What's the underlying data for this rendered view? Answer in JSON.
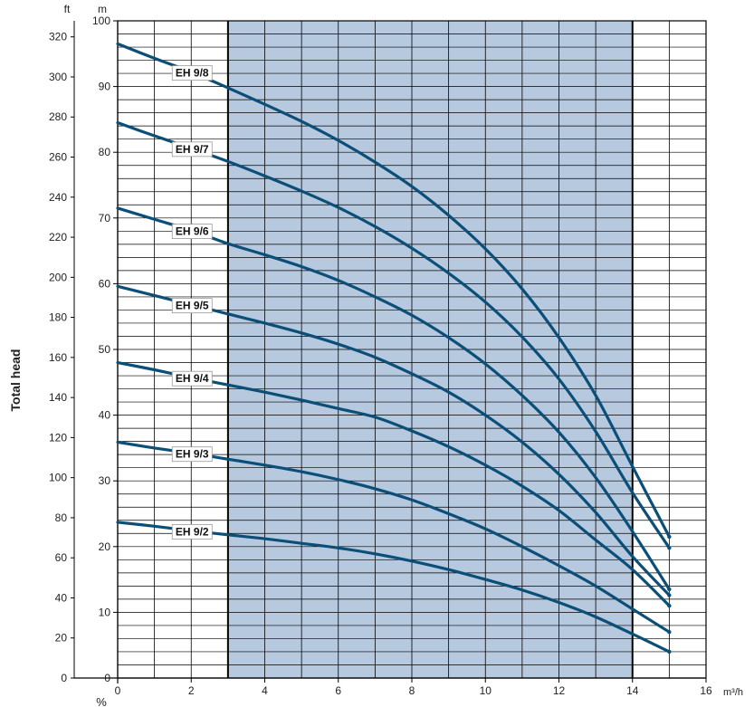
{
  "chart_data": {
    "type": "line",
    "ylabel": "Total head",
    "y_unit_m": "m",
    "y_unit_ft": "ft",
    "x_unit": "m³/h",
    "bottom_label": "%",
    "xlim": [
      0,
      16
    ],
    "ylim_m": [
      0,
      100
    ],
    "ylim_ft": [
      0,
      328
    ],
    "x_ticks": [
      "0",
      "2",
      "4",
      "6",
      "8",
      "10",
      "12",
      "14",
      "16"
    ],
    "y_ticks_m": [
      "0",
      "10",
      "20",
      "30",
      "40",
      "50",
      "60",
      "70",
      "80",
      "90",
      "100"
    ],
    "y_ticks_ft": [
      "0",
      "20",
      "40",
      "60",
      "80",
      "100",
      "120",
      "140",
      "160",
      "180",
      "200",
      "220",
      "240",
      "260",
      "280",
      "300",
      "320"
    ],
    "grid": true,
    "shaded_region_x": [
      3,
      14
    ],
    "colors": {
      "curve": "#0b4f78",
      "shade": "#b7c9df",
      "grid": "#000000",
      "text": "#222222"
    },
    "series": [
      {
        "name": "EH 9/8",
        "label_x": 2.0,
        "x": [
          0,
          1,
          2,
          3,
          4,
          5,
          6,
          7,
          8,
          9,
          10,
          11,
          12,
          13,
          14,
          15
        ],
        "y": [
          96.5,
          94.3,
          92.2,
          89.8,
          87.3,
          84.7,
          81.8,
          78.5,
          74.8,
          70.4,
          65.3,
          59.2,
          51.8,
          43.0,
          32.2,
          21.5
        ]
      },
      {
        "name": "EH 9/7",
        "label_x": 2.0,
        "x": [
          0,
          1,
          2,
          3,
          4,
          5,
          6,
          7,
          8,
          9,
          10,
          11,
          12,
          13,
          14,
          15
        ],
        "y": [
          84.5,
          82.5,
          80.6,
          78.6,
          76.4,
          74.1,
          71.6,
          68.7,
          65.4,
          61.6,
          57.2,
          51.9,
          45.5,
          37.5,
          28.2,
          19.8
        ]
      },
      {
        "name": "EH 9/6",
        "label_x": 2.0,
        "x": [
          0,
          1,
          2,
          3,
          4,
          5,
          6,
          7,
          8,
          9,
          10,
          11,
          12,
          13,
          14,
          15
        ],
        "y": [
          71.5,
          69.8,
          68.1,
          66.1,
          64.4,
          62.6,
          60.5,
          58.0,
          55.2,
          51.8,
          47.8,
          43.0,
          37.4,
          30.5,
          22.3,
          13.5
        ]
      },
      {
        "name": "EH 9/5",
        "label_x": 2.0,
        "x": [
          0,
          1,
          2,
          3,
          4,
          5,
          6,
          7,
          8,
          9,
          10,
          11,
          12,
          13,
          14,
          15
        ],
        "y": [
          59.6,
          58.2,
          56.8,
          55.4,
          54.0,
          52.5,
          50.8,
          48.8,
          46.3,
          43.5,
          40.0,
          35.9,
          31.0,
          25.2,
          18.5,
          12.6
        ]
      },
      {
        "name": "EH 9/4",
        "label_x": 2.0,
        "x": [
          0,
          1,
          2,
          3,
          4,
          5,
          6,
          7,
          8,
          9,
          10,
          11,
          12,
          13,
          14,
          15
        ],
        "y": [
          48.0,
          46.9,
          45.7,
          44.6,
          43.5,
          42.3,
          41.0,
          39.7,
          37.6,
          35.2,
          32.4,
          29.2,
          25.5,
          21.0,
          16.5,
          11.0
        ]
      },
      {
        "name": "EH 9/3",
        "label_x": 2.0,
        "x": [
          0,
          1,
          2,
          3,
          4,
          5,
          6,
          7,
          8,
          9,
          10,
          11,
          12,
          13,
          14,
          15
        ],
        "y": [
          35.9,
          35.0,
          34.2,
          33.3,
          32.4,
          31.4,
          30.2,
          28.8,
          27.1,
          25.0,
          22.7,
          20.0,
          17.1,
          14.0,
          10.5,
          7.0
        ]
      },
      {
        "name": "EH 9/2",
        "label_x": 2.0,
        "x": [
          0,
          1,
          2,
          3,
          4,
          5,
          6,
          7,
          8,
          9,
          10,
          11,
          12,
          13,
          14,
          15
        ],
        "y": [
          23.7,
          23.1,
          22.4,
          21.8,
          21.2,
          20.5,
          19.8,
          18.9,
          17.8,
          16.5,
          15.0,
          13.4,
          11.5,
          9.3,
          6.7,
          4.0
        ]
      }
    ]
  }
}
